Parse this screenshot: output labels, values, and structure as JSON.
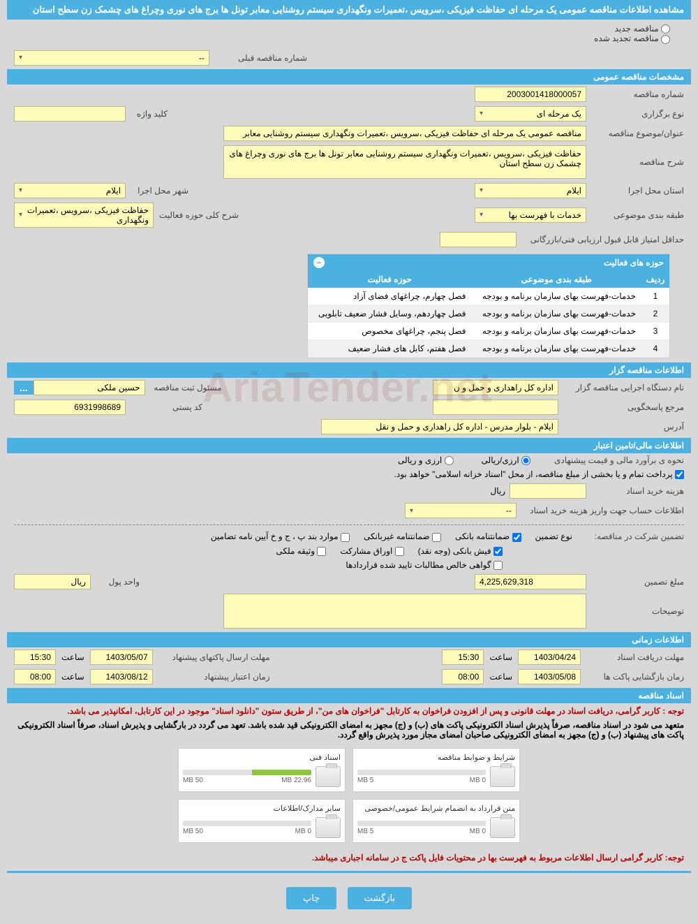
{
  "colors": {
    "brand": "#4ab1e1",
    "field_bg": "#fffcbb",
    "field_border": "#b8b88a",
    "warning": "#b00000"
  },
  "main_title": "مشاهده اطلاعات مناقصه عمومی یک مرحله ای حفاظت فیزیکی ،سرویس ،تعمیرات ونگهداری سیستم روشنایی معابر تونل ها برج های نوری وچراغ های چشمک زن سطح استان",
  "top_radio": {
    "new_label": "مناقصه جدید",
    "renewed_label": "مناقصه تجدید شده"
  },
  "prev_number": {
    "label": "شماره مناقصه قبلی",
    "value": "--"
  },
  "sections": {
    "general": "مشخصات مناقصه عمومی",
    "organizer": "اطلاعات مناقصه گزار",
    "financial": "اطلاعات مالی/تامین اعتبار",
    "timing": "اطلاعات زمانی",
    "documents": "اسناد مناقصه"
  },
  "general": {
    "tender_no_label": "شماره مناقصه",
    "tender_no": "2003001418000057",
    "type_label": "نوع برگزاری",
    "type": "یک مرحله ای",
    "keyword_label": "کلید واژه",
    "subject_label": "عنوان/موضوع مناقصه",
    "subject": "مناقصه عمومی یک مرحله ای حفاظت فیزیکی ،سرویس ،تعمیرات ونگهداری سیستم روشنایی معابر",
    "desc_label": "شرح مناقصه",
    "desc": "حفاظت فیزیکی ،سرویس ،تعمیرات ونگهداری سیستم روشنایی معابر تونل ها برج های نوری وچراغ های چشمک زن سطح  استان",
    "province_label": "استان محل اجرا",
    "province": "ایلام",
    "city_label": "شهر محل اجرا",
    "city": "ایلام",
    "category_label": "طبقه بندی موضوعی",
    "category": "خدمات با فهرست بها",
    "scope_label": "شرح کلی حوزه فعالیت",
    "scope": "حفاظت فیزیکی ،سرویس ،تعمیرات ونگهداری",
    "min_score_label": "حداقل امتیاز قابل قبول ارزیابی فنی/بازرگانی"
  },
  "activity_table": {
    "title": "حوزه های فعالیت",
    "cols": {
      "row": "ردیف",
      "category": "طبقه بندی موضوعی",
      "activity": "حوزه فعالیت"
    },
    "rows": [
      {
        "n": "1",
        "cat": "خدمات-فهرست بهای سازمان برنامه و بودجه",
        "act": "فصل چهارم، چراغهای فضای آزاد"
      },
      {
        "n": "2",
        "cat": "خدمات-فهرست بهای سازمان برنامه و بودجه",
        "act": "فصل چهاردهم، وسایل فشار ضعیف تابلویی"
      },
      {
        "n": "3",
        "cat": "خدمات-فهرست بهای سازمان برنامه و بودجه",
        "act": "فصل پنجم، چراغهای مخصوص"
      },
      {
        "n": "4",
        "cat": "خدمات-فهرست بهای سازمان برنامه و بودجه",
        "act": "فصل هفتم، کابل های فشار ضعیف"
      }
    ]
  },
  "organizer": {
    "agency_label": "نام دستگاه اجرایی مناقصه گزار",
    "agency": "اداره کل راهداری و حمل و ن",
    "registrar_label": "مسئول ثبت مناقصه",
    "registrar": "حسین ملکی",
    "responder_label": "مرجع پاسخگویی",
    "postal_label": "کد پستی",
    "postal": "6931998689",
    "address_label": "آدرس",
    "address": "ایلام - بلوار مدرس - اداره کل راهداری و حمل و نقل"
  },
  "financial": {
    "currency_label": "نحوه ی برآورد مالی و قیمت پیشنهادی",
    "opt_rial": "ارزی/ریالی",
    "opt_both": "ارزی و ریالی",
    "pay_note": "پرداخت تمام و یا بخشی از مبلغ مناقصه، از محل \"اسناد خزانه اسلامی\" خواهد بود.",
    "doc_cost_label": "هزینه خرید اسناد",
    "doc_cost_unit": "ریال",
    "account_label": "اطلاعات حساب جهت واریز هزینه خرید اسناد",
    "account_value": "--",
    "guarantee_label": "تضمین شرکت در مناقصه:",
    "guarantee_type_label": "نوع تضمین",
    "chk_bank": "ضمانتنامه بانکی",
    "chk_nonbank": "ضمانتنامه غیربانکی",
    "chk_bond": "موارد بند پ ، ج و خ آیین نامه تضامین",
    "chk_cash": "فیش بانکی (وجه نقد)",
    "chk_shares": "اوراق مشارکت",
    "chk_property": "وثیقه ملکی",
    "chk_claims": "گواهی خالص مطالبات تایید شده قراردادها",
    "amount_label": "مبلغ تضمین",
    "amount": "4,225,629,318",
    "unit_label": "واحد پول",
    "unit": "ریال",
    "remarks_label": "توضیحات"
  },
  "timing": {
    "receive_date_label": "مهلت دریافت اسناد",
    "receive_date": "1403/04/24",
    "receive_time": "15:30",
    "open_date_label": "زمان بازگشایی پاکت ها",
    "open_date": "1403/05/08",
    "open_time": "08:00",
    "submit_date_label": "مهلت ارسال پاکتهای پیشنهاد",
    "submit_date": "1403/05/07",
    "submit_time": "15:30",
    "valid_date_label": "زمان اعتبار پیشنهاد",
    "valid_date": "1403/08/12",
    "valid_time": "08:00",
    "time_label": "ساعت"
  },
  "documents": {
    "note1": "توجه : کاربر گرامی، دریافت اسناد در مهلت قانونی و پس از افزودن فراخوان به کارتابل \"فراخوان های من\"، از طریق ستون \"دانلود اسناد\" موجود در این کارتابل، امکانپذیر می باشد.",
    "note2": "متعهد می شود در اسناد مناقصه، صرفاً پذیرش اسناد الکترونیکی پاکت های (ب) و (ج) مجهز به امضای الکترونیکی قید شده باشد. تعهد می گردد در بارگشایی و پذیرش اسناد، صرفاً اسناد الکترونیکی پاکت های پیشنهاد (ب) و (ج) مجهز به امضای الکترونیکی صاحبان امضای مجاز مورد پذیرش واقع گردد.",
    "files": [
      {
        "title": "شرایط و ضوابط مناقصه",
        "used": "0 MB",
        "total": "5 MB",
        "pct": 0
      },
      {
        "title": "اسناد فنی",
        "used": "22.96 MB",
        "total": "50 MB",
        "pct": 46
      },
      {
        "title": "متن قرارداد به انضمام شرایط عمومی/خصوصی",
        "used": "0 MB",
        "total": "5 MB",
        "pct": 0
      },
      {
        "title": "سایر مدارک/اطلاعات",
        "used": "0 MB",
        "total": "50 MB",
        "pct": 0
      }
    ],
    "warn": "توجه: کاربر گرامی ارسال اطلاعات مربوط به فهرست بها در محتویات فایل پاکت ج در سامانه اجباری میباشد."
  },
  "buttons": {
    "back": "بازگشت",
    "print": "چاپ"
  },
  "watermark": "AriaTender.net"
}
